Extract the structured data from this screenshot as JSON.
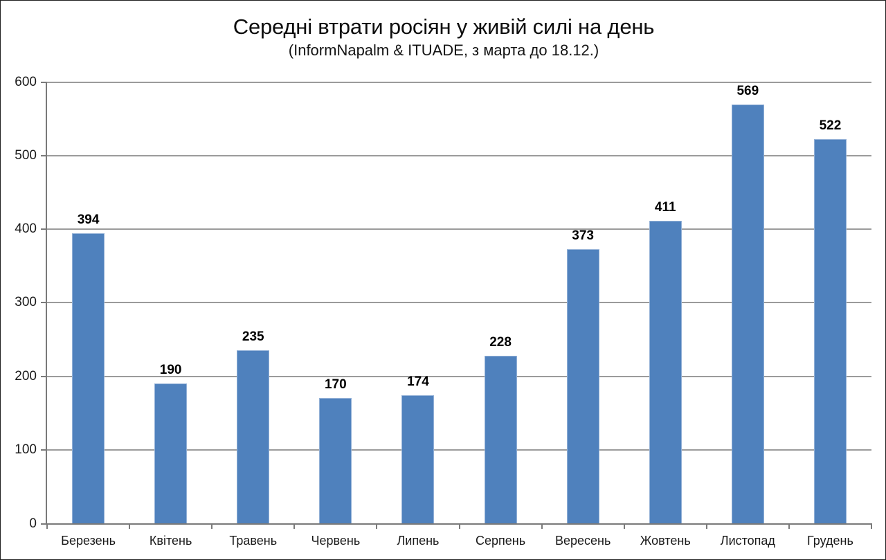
{
  "chart_data": {
    "type": "bar",
    "title": "Середні втрати росіян у живій силі на день",
    "subtitle": "(InformNapalm & ITUADE, з марта до 18.12.)",
    "categories": [
      "Березень",
      "Квітень",
      "Травень",
      "Червень",
      "Липень",
      "Серпень",
      "Вересень",
      "Жовтень",
      "Листопад",
      "Грудень"
    ],
    "values": [
      394,
      190,
      235,
      170,
      174,
      228,
      373,
      411,
      569,
      522
    ],
    "xlabel": "",
    "ylabel": "",
    "ylim": [
      0,
      600
    ],
    "ytick_step": 100,
    "ytick_labels": [
      "0",
      "100",
      "200",
      "300",
      "400",
      "500",
      "600"
    ],
    "grid": "horizontal",
    "legend": "none",
    "colors": {
      "bar_fill": "#4F81BD",
      "bar_border": "#93B1D7",
      "gridline": "#9B9B9B",
      "axis_line": "#7A7A7A",
      "axis_text": "#1A1A1A",
      "value_label_text": "#000000",
      "title_text": "#0D0D0D"
    }
  }
}
